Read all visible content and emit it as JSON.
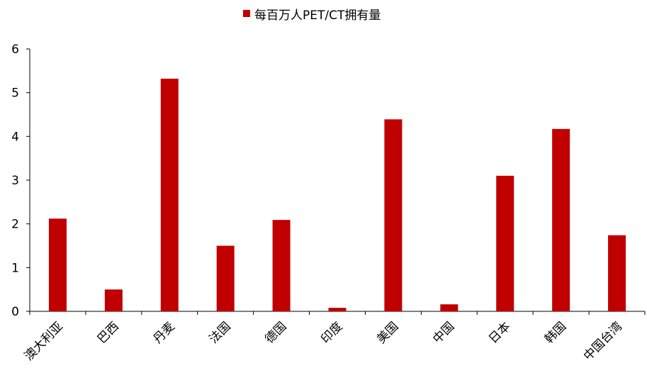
{
  "chart_data": {
    "type": "bar",
    "title": "",
    "xlabel": "",
    "ylabel": "",
    "legend": {
      "position": "top-center",
      "label": "每百万人PET/CT拥有量"
    },
    "categories": [
      "澳大利亚",
      "巴西",
      "丹麦",
      "法国",
      "德国",
      "印度",
      "美国",
      "中国",
      "日本",
      "韩国",
      "中国台湾"
    ],
    "series": [
      {
        "name": "每百万人PET/CT拥有量",
        "values": [
          2.12,
          0.5,
          5.32,
          1.5,
          2.09,
          0.08,
          4.39,
          0.16,
          3.1,
          4.17,
          1.74
        ]
      }
    ],
    "ylim": [
      0,
      6
    ],
    "yticks": [
      "0",
      "1",
      "2",
      "3",
      "4",
      "5",
      "6"
    ],
    "grid": false,
    "color": "#C00000"
  }
}
